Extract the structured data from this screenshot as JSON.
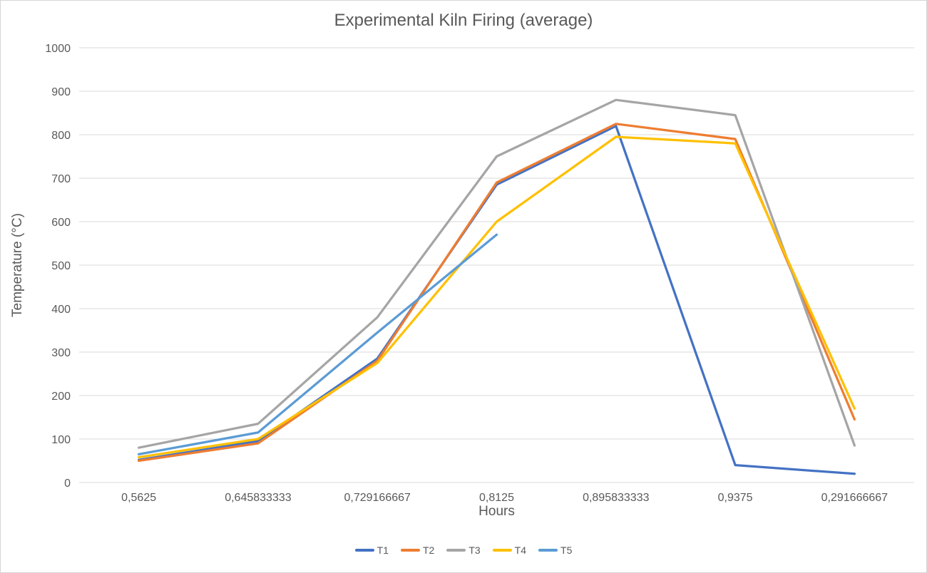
{
  "chart_data": {
    "type": "line",
    "title": "Experimental Kiln Firing (average)",
    "xlabel": "Hours",
    "ylabel": "Temperature (°C)",
    "categories": [
      "0,5625",
      "0,645833333",
      "0,729166667",
      "0,8125",
      "0,895833333",
      "0,9375",
      "0,291666667"
    ],
    "y_ticks": [
      0,
      100,
      200,
      300,
      400,
      500,
      600,
      700,
      800,
      900,
      1000
    ],
    "ylim": [
      0,
      1000
    ],
    "grid": "horizontal",
    "legend_position": "bottom",
    "series": [
      {
        "name": "T1",
        "color": "#4472C4",
        "values": [
          52,
          95,
          285,
          685,
          820,
          40,
          20
        ]
      },
      {
        "name": "T2",
        "color": "#ED7D31",
        "values": [
          50,
          90,
          280,
          690,
          825,
          790,
          145
        ]
      },
      {
        "name": "T3",
        "color": "#A5A5A5",
        "values": [
          80,
          135,
          380,
          750,
          880,
          845,
          85
        ]
      },
      {
        "name": "T4",
        "color": "#FFC000",
        "values": [
          58,
          100,
          275,
          600,
          795,
          780,
          170
        ]
      },
      {
        "name": "T5",
        "color": "#5B9BD5",
        "values": [
          65,
          115,
          345,
          570,
          null,
          null,
          null
        ]
      }
    ]
  },
  "styles": {
    "text_color": "#595959",
    "grid_color": "#D9D9D9",
    "background": "#FFFFFF"
  }
}
